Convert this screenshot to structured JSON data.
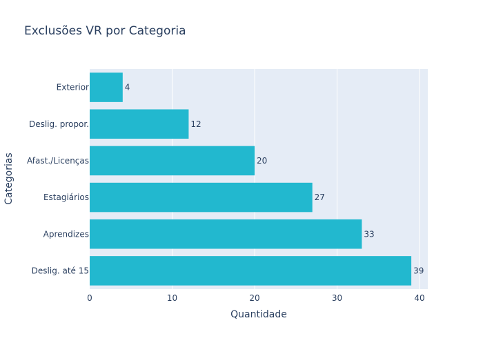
{
  "chart_data": {
    "type": "bar",
    "orientation": "horizontal",
    "title": "Exclusões VR por Categoria",
    "xlabel": "Quantidade",
    "ylabel": "Categorias",
    "categories": [
      "Deslig. até 15",
      "Aprendizes",
      "Estagiários",
      "Afast./Licenças",
      "Deslig. propor.",
      "Exterior"
    ],
    "values": [
      39,
      33,
      27,
      20,
      12,
      4
    ],
    "data_labels": [
      "39",
      "33",
      "27",
      "20",
      "12",
      "4"
    ],
    "xlim": [
      0,
      41
    ],
    "x_ticks": [
      0,
      10,
      20,
      30,
      40
    ],
    "x_tick_labels": [
      "0",
      "10",
      "20",
      "30",
      "40"
    ],
    "grid": true,
    "colors": {
      "bar": "#22b8cf",
      "plot_bg": "#e5ecf6",
      "grid": "#ffffff",
      "text": "#2a3f5f"
    }
  }
}
